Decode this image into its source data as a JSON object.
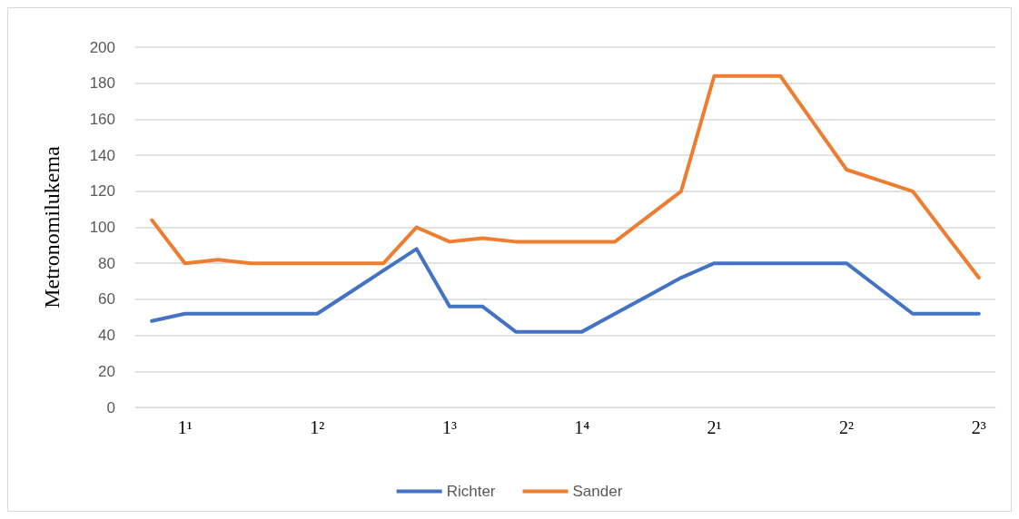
{
  "chart_data": {
    "type": "line",
    "ylabel": "Metronomilukema",
    "categories": [
      null,
      "1¹",
      null,
      null,
      null,
      "1²",
      null,
      null,
      null,
      "1³",
      null,
      null,
      null,
      "1⁴",
      null,
      null,
      null,
      "2¹",
      null,
      null,
      null,
      "2²",
      null,
      null,
      null,
      "2³"
    ],
    "series": [
      {
        "name": "Richter",
        "color": "#4472c4",
        "values": [
          48,
          52,
          52,
          52,
          52,
          52,
          64,
          76,
          88,
          56,
          56,
          42,
          42,
          42,
          52,
          62,
          72,
          80,
          80,
          80,
          80,
          80,
          66,
          52,
          52,
          52
        ]
      },
      {
        "name": "Sander",
        "color": "#ed7d31",
        "values": [
          104,
          80,
          82,
          80,
          80,
          80,
          80,
          80,
          100,
          92,
          94,
          92,
          92,
          92,
          92,
          106,
          120,
          184,
          184,
          184,
          158,
          132,
          126,
          120,
          96,
          72
        ]
      }
    ],
    "ylim": [
      0,
      200
    ],
    "yticks": [
      0,
      20,
      40,
      60,
      80,
      100,
      120,
      140,
      160,
      180,
      200
    ],
    "grid": "y",
    "legend": "bottom",
    "marker": "none",
    "line_style": "solid"
  }
}
